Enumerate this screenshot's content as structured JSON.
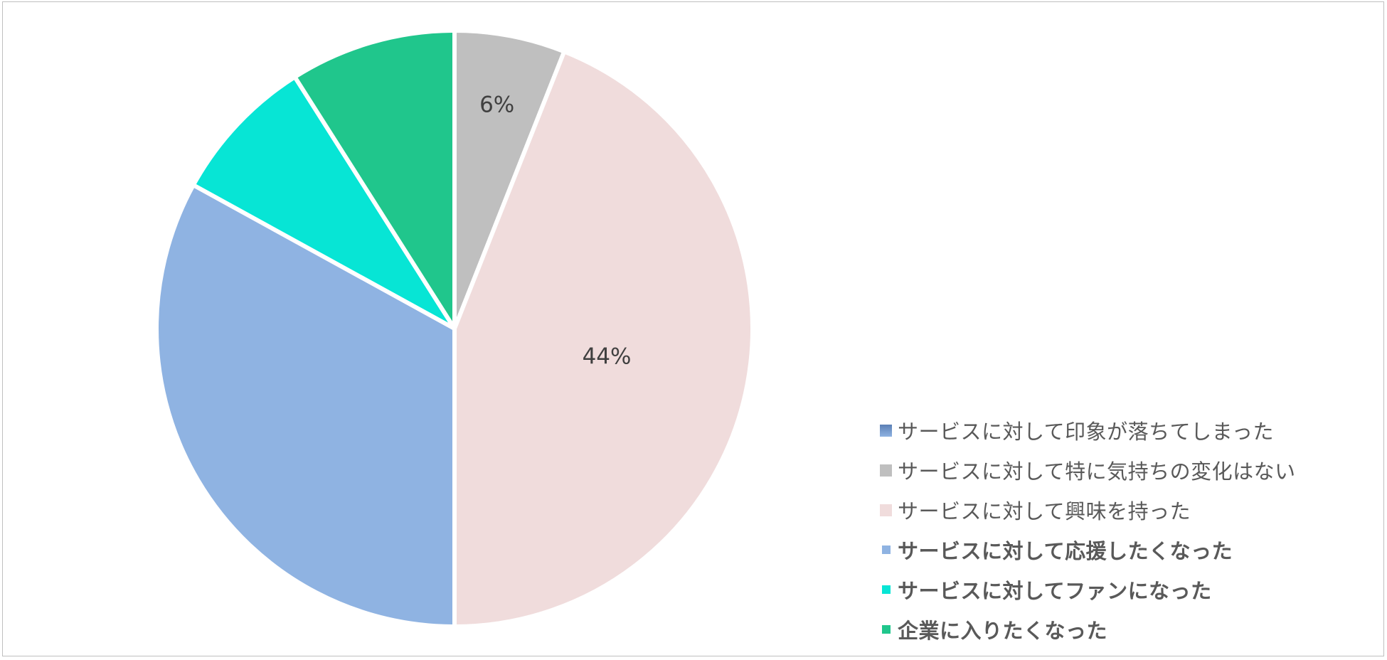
{
  "chart_data": {
    "type": "pie",
    "categories": [
      "サービスに対して印象が落ちてしまった",
      "サービスに対して特に気持ちの変化はない",
      "サービスに対して興味を持った",
      "サービスに対して応援したくなった",
      "サービスに対してファンになった",
      "企業に入りたくなった"
    ],
    "values": [
      0,
      6,
      44,
      33,
      8,
      9
    ],
    "data_labels": [
      "",
      "6%",
      "44%",
      "",
      "",
      ""
    ],
    "colors": [
      "#6f93c7",
      "#bfbfbf",
      "#f0dcdc",
      "#8fb3e2",
      "#07e5d5",
      "#20c68c"
    ],
    "legend_bold": [
      false,
      false,
      false,
      true,
      true,
      true
    ],
    "legend_position": "bottom-right",
    "start_angle": "top",
    "direction": "clockwise"
  }
}
